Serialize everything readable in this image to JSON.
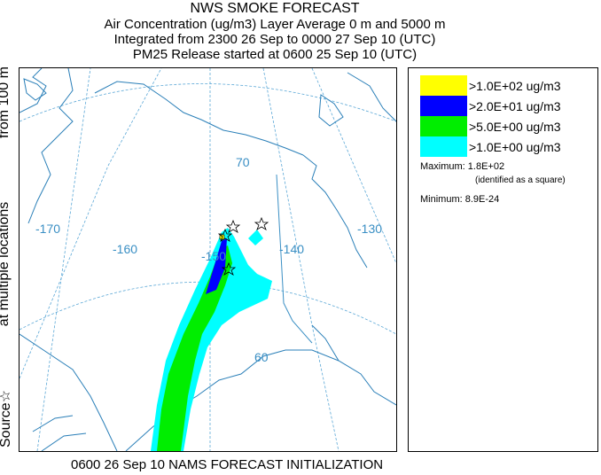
{
  "header": {
    "title": "NWS SMOKE FORECAST",
    "line2": "Air Concentration (ug/m3) Layer Average    0 m and  5000 m",
    "line3": "Integrated from 2300 26 Sep to 0000 27 Sep 10 (UTC)",
    "line4": "PM25 Release started at 0600 25 Sep 10 (UTC)"
  },
  "side_label": {
    "part1": "Source☆",
    "part2": "at multiple locations",
    "part3": "from   100 m"
  },
  "footer": "0600 26 Sep 10 NAMS FORECAST INITIALIZATION",
  "legend": {
    "entries": [
      {
        "label": ">1.0E+02 ug/m3",
        "color": "#ffff00"
      },
      {
        "label": ">2.0E+01 ug/m3",
        "color": "#0000ff"
      },
      {
        "label": ">5.0E+00 ug/m3",
        "color": "#00ee00"
      },
      {
        "label": ">1.0E+00 ug/m3",
        "color": "#00ffff"
      }
    ],
    "maximum_label": "Maximum: 1.8E+02",
    "maximum_note": "(identified as a square)",
    "minimum_label": "Minimum: 8.9E-24"
  },
  "map": {
    "graticule_labels": [
      "70",
      "-170",
      "-160",
      "-150",
      "-140",
      "-130",
      "60"
    ],
    "colors": {
      "coast": "#2a7fb8",
      "graticule": "#5aa7d6",
      "border": "#3a8fc4"
    }
  }
}
